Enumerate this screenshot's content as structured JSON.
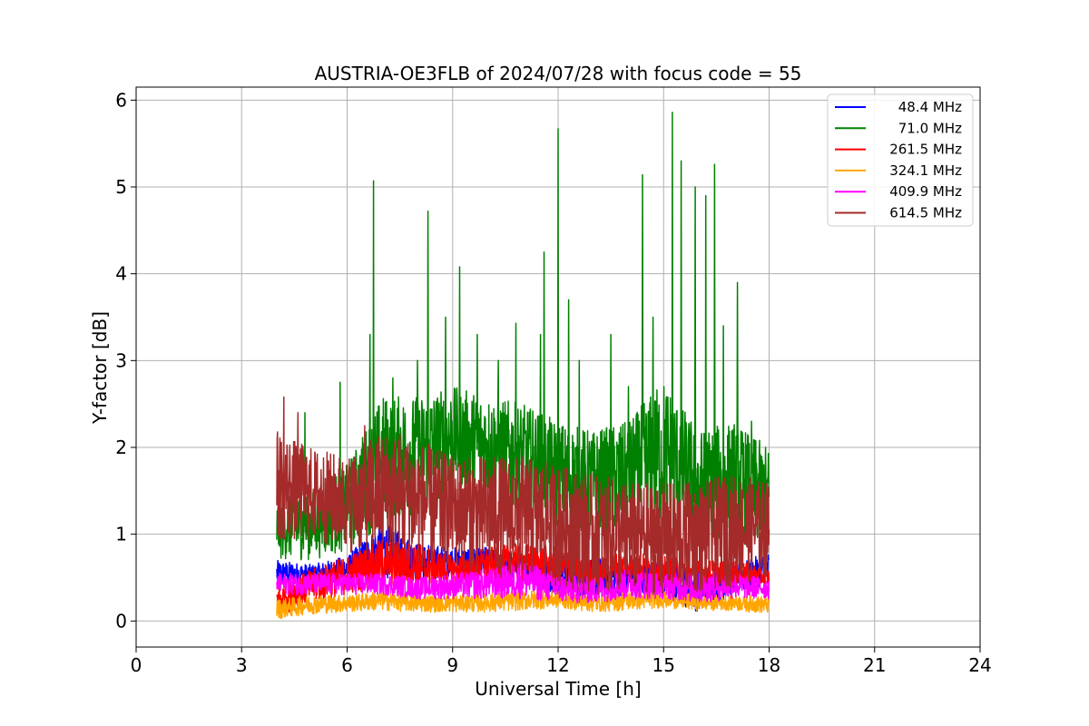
{
  "chart_data": {
    "type": "line",
    "title": "AUSTRIA-OE3FLB of 2024/07/28 with focus code = 55",
    "xlabel": "Universal Time [h]",
    "ylabel": "Y-factor [dB]",
    "xlim": [
      0,
      24
    ],
    "ylim": [
      -0.3,
      6.15
    ],
    "xticks": [
      0,
      3,
      6,
      9,
      12,
      15,
      18,
      21,
      24
    ],
    "yticks": [
      0,
      1,
      2,
      3,
      4,
      5,
      6
    ],
    "grid": true,
    "legend_position": "top-right",
    "x_range_of_data": [
      4.0,
      18.0
    ],
    "series": [
      {
        "name": "48.4 MHz",
        "color": "#0000ff",
        "x": [
          4,
          5,
          6,
          7,
          8,
          9,
          10,
          11,
          12,
          13,
          14,
          15,
          16,
          17,
          18
        ],
        "min": [
          0.38,
          0.4,
          0.42,
          0.5,
          0.45,
          0.52,
          0.55,
          0.45,
          0.3,
          0.25,
          0.3,
          0.25,
          0.1,
          0.3,
          0.4
        ],
        "max": [
          0.7,
          0.65,
          0.75,
          1.15,
          0.9,
          0.85,
          0.85,
          0.8,
          0.7,
          0.75,
          0.7,
          0.7,
          0.6,
          0.65,
          0.8
        ]
      },
      {
        "name": "71.0 MHz",
        "color": "#008000",
        "x": [
          4,
          5,
          6,
          7,
          8,
          9,
          10,
          11,
          12,
          13,
          14,
          15,
          16,
          17,
          18
        ],
        "min": [
          0.7,
          0.7,
          0.8,
          1.1,
          1.2,
          1.5,
          1.4,
          1.2,
          1.0,
          0.9,
          1.0,
          1.0,
          0.8,
          0.9,
          0.8
        ],
        "max": [
          1.4,
          1.5,
          1.8,
          2.6,
          2.6,
          2.7,
          2.6,
          2.5,
          2.3,
          2.2,
          2.3,
          2.8,
          2.2,
          2.3,
          2.0
        ],
        "spikes": [
          [
            4.8,
            2.4
          ],
          [
            5.8,
            2.75
          ],
          [
            6.75,
            5.07
          ],
          [
            6.65,
            3.3
          ],
          [
            7.3,
            2.8
          ],
          [
            8.0,
            3.0
          ],
          [
            8.3,
            4.72
          ],
          [
            8.8,
            3.5
          ],
          [
            9.2,
            4.08
          ],
          [
            9.7,
            3.3
          ],
          [
            10.3,
            3.0
          ],
          [
            10.8,
            3.43
          ],
          [
            11.6,
            4.25
          ],
          [
            11.5,
            3.3
          ],
          [
            12.0,
            5.67
          ],
          [
            12.3,
            3.7
          ],
          [
            12.6,
            3.0
          ],
          [
            13.5,
            3.3
          ],
          [
            14.0,
            2.7
          ],
          [
            14.4,
            5.14
          ],
          [
            14.7,
            3.5
          ],
          [
            15.25,
            5.86
          ],
          [
            15.5,
            5.3
          ],
          [
            15.9,
            5.0
          ],
          [
            16.2,
            4.9
          ],
          [
            16.45,
            5.26
          ],
          [
            16.7,
            3.4
          ],
          [
            17.1,
            3.9
          ],
          [
            17.5,
            2.3
          ]
        ]
      },
      {
        "name": "261.5 MHz",
        "color": "#ff0000",
        "x": [
          4,
          5,
          6,
          7,
          8,
          9,
          10,
          11,
          12,
          13,
          14,
          15,
          16,
          17,
          18
        ],
        "min": [
          0.05,
          0.2,
          0.3,
          0.4,
          0.35,
          0.4,
          0.45,
          0.4,
          0.4,
          0.4,
          0.45,
          0.4,
          0.35,
          0.4,
          0.4
        ],
        "max": [
          0.4,
          0.6,
          0.75,
          0.95,
          0.9,
          0.75,
          0.85,
          0.9,
          0.85,
          0.75,
          0.8,
          0.75,
          0.7,
          0.7,
          0.6
        ]
      },
      {
        "name": "324.1 MHz",
        "color": "#ffa500",
        "x": [
          4,
          5,
          6,
          7,
          8,
          9,
          10,
          11,
          12,
          13,
          14,
          15,
          16,
          17,
          18
        ],
        "min": [
          0.02,
          0.08,
          0.1,
          0.12,
          0.1,
          0.1,
          0.1,
          0.12,
          0.15,
          0.1,
          0.12,
          0.15,
          0.12,
          0.12,
          0.08
        ],
        "max": [
          0.25,
          0.3,
          0.3,
          0.35,
          0.3,
          0.3,
          0.32,
          0.35,
          0.35,
          0.3,
          0.35,
          0.35,
          0.3,
          0.3,
          0.28
        ]
      },
      {
        "name": "409.9 MHz",
        "color": "#ff00ff",
        "x": [
          4,
          5,
          6,
          7,
          8,
          9,
          10,
          11,
          12,
          13,
          14,
          15,
          16,
          17,
          18
        ],
        "min": [
          0.3,
          0.3,
          0.3,
          0.3,
          0.25,
          0.25,
          0.25,
          0.25,
          0.2,
          0.2,
          0.25,
          0.25,
          0.2,
          0.25,
          0.25
        ],
        "max": [
          0.55,
          0.55,
          0.55,
          0.55,
          0.5,
          0.55,
          0.6,
          0.7,
          0.55,
          0.5,
          0.6,
          0.55,
          0.55,
          0.55,
          0.5
        ]
      },
      {
        "name": "614.5 MHz",
        "color": "#a52a2a",
        "x": [
          4,
          5,
          6,
          7,
          8,
          9,
          10,
          11,
          12,
          13,
          14,
          15,
          16,
          17,
          18
        ],
        "min": [
          0.9,
          0.9,
          0.8,
          0.7,
          0.6,
          0.6,
          0.5,
          0.5,
          0.4,
          0.3,
          0.3,
          0.3,
          0.3,
          0.4,
          0.5
        ],
        "max": [
          2.2,
          2.0,
          1.9,
          2.2,
          2.1,
          1.9,
          1.9,
          1.9,
          1.8,
          1.7,
          1.6,
          1.6,
          1.6,
          1.7,
          1.6
        ],
        "spikes": [
          [
            4.2,
            2.58
          ],
          [
            4.6,
            2.4
          ],
          [
            6.5,
            2.25
          ],
          [
            7.5,
            2.15
          ]
        ]
      }
    ]
  }
}
